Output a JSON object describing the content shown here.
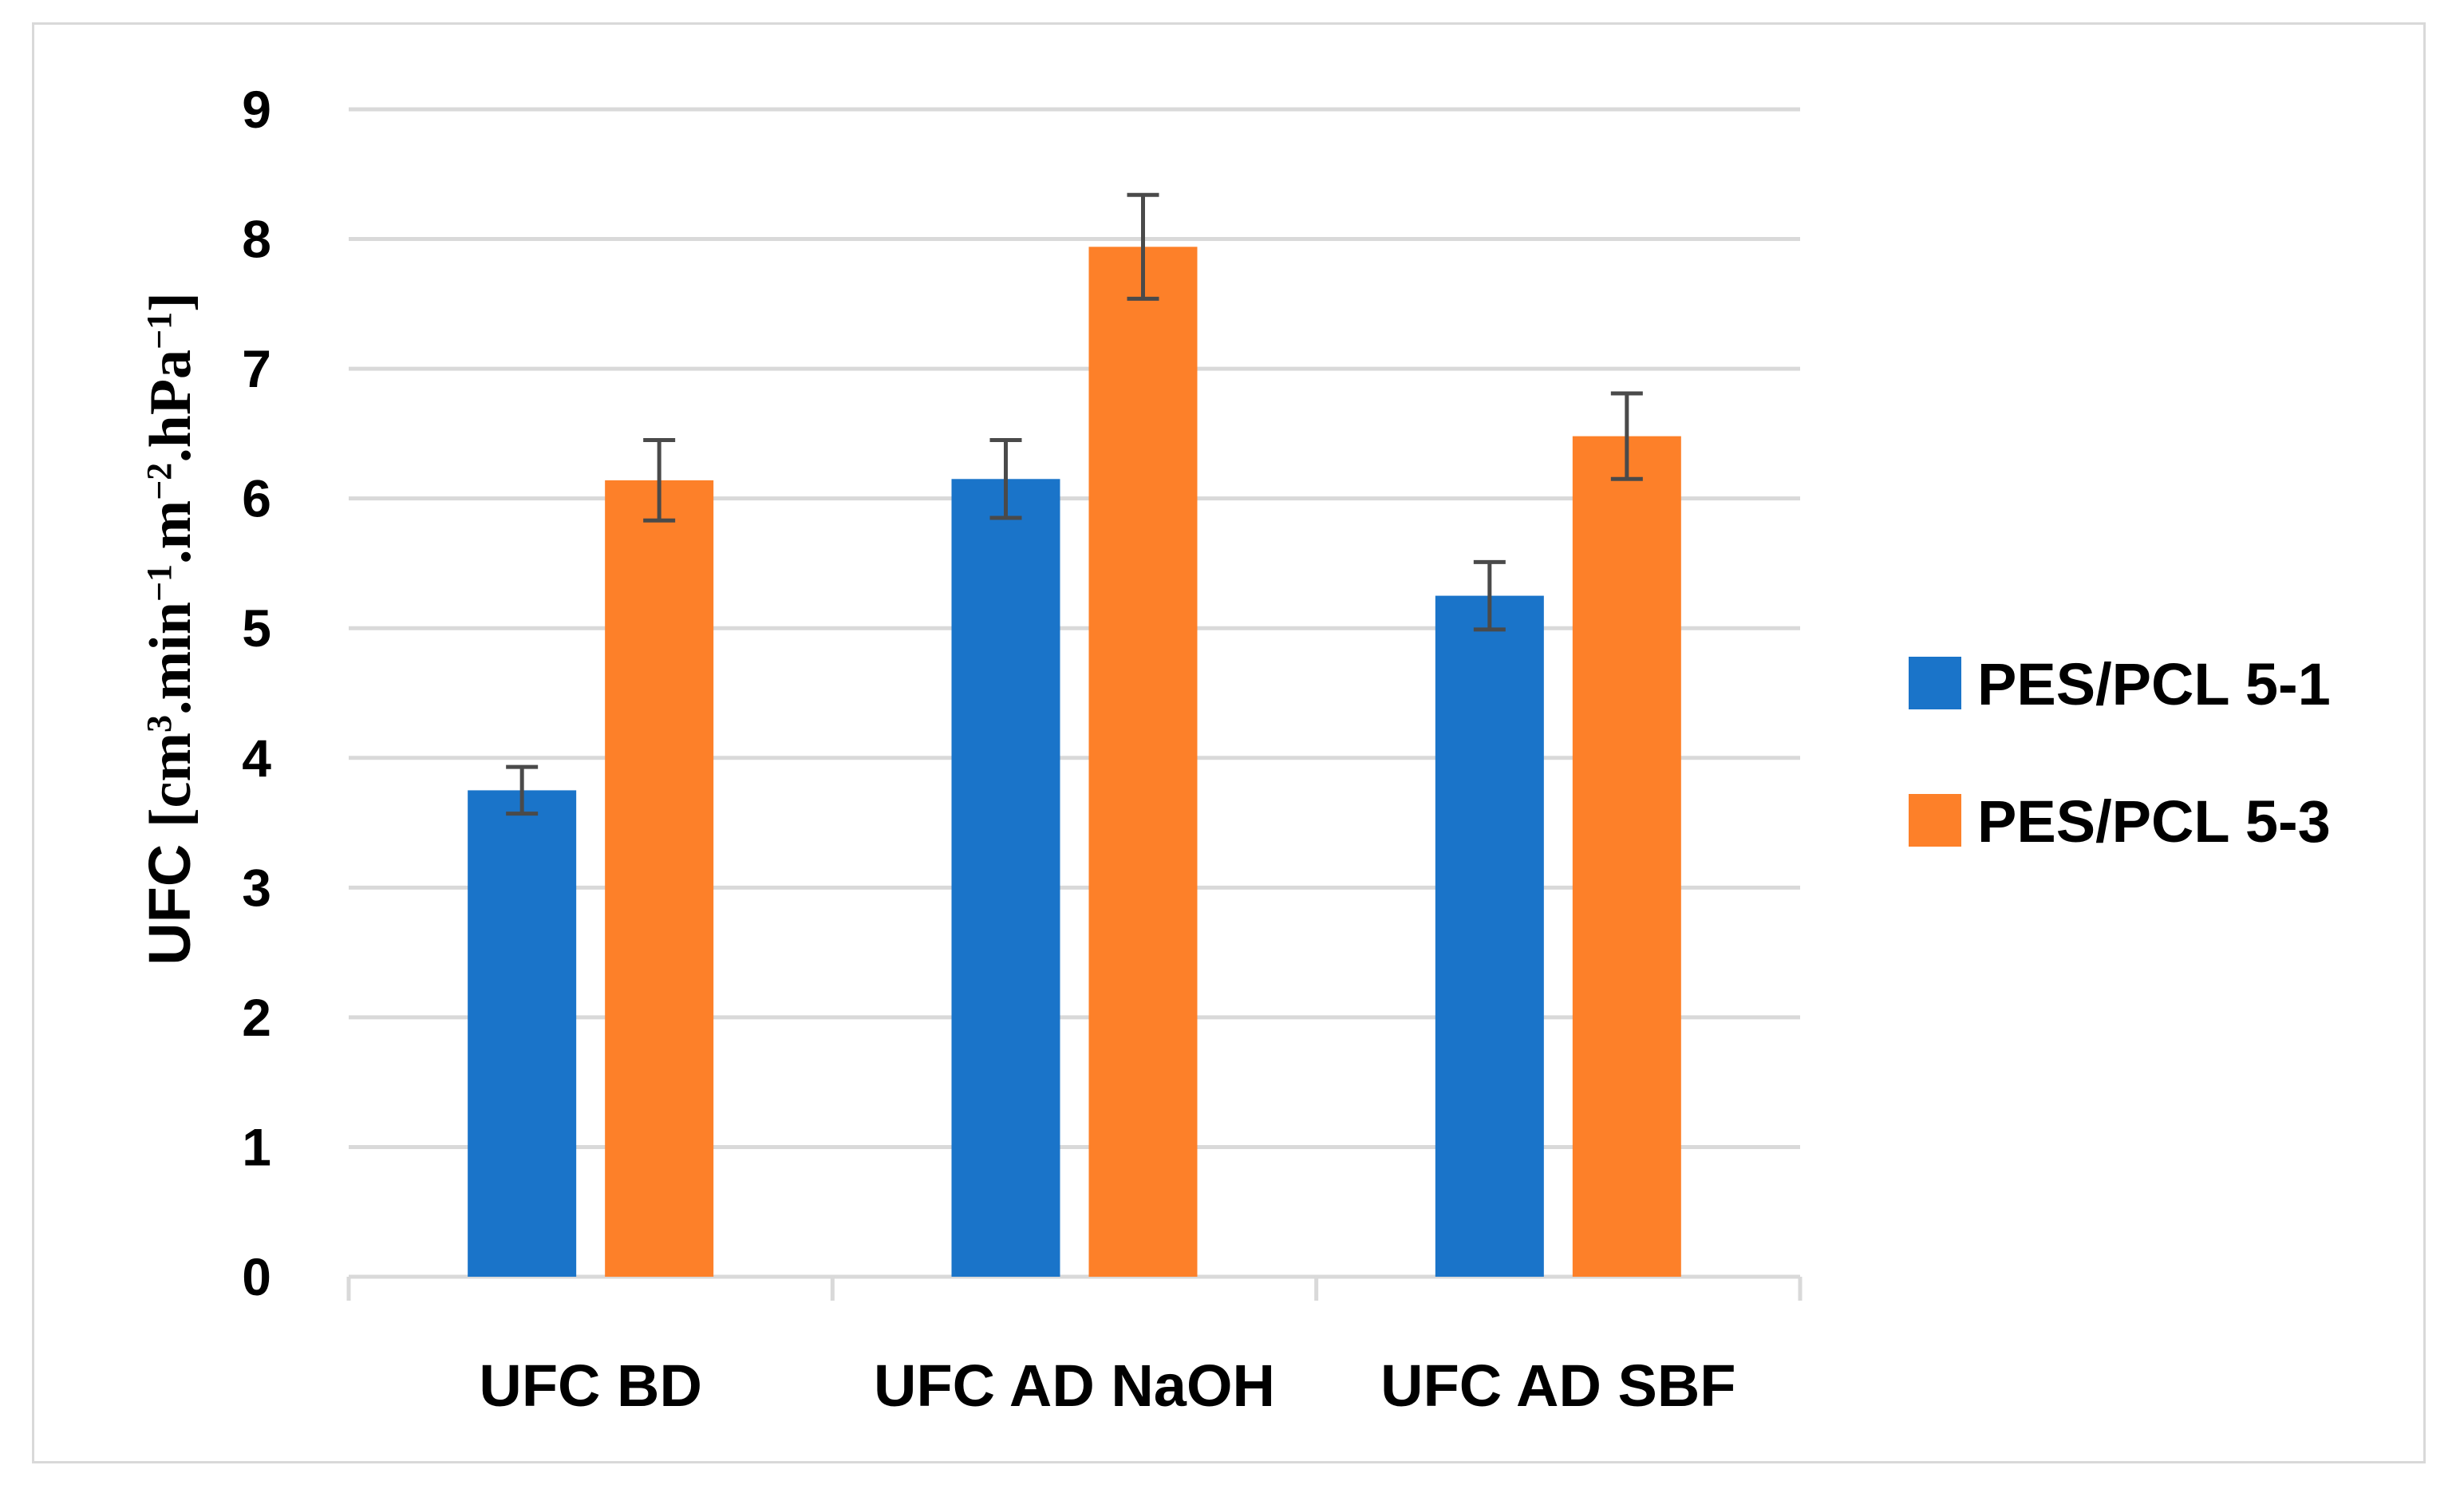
{
  "chart_data": {
    "type": "bar",
    "title": "",
    "xlabel": "",
    "ylabel": {
      "prefix": "UFC ",
      "bracket_open": "[",
      "cm": "cm",
      "cm_exp": "3",
      "min": ".min",
      "min_exp": "−1",
      "m": ".m",
      "m_exp": "−2",
      "hpa": ".hPa",
      "hpa_exp": "−1",
      "bracket_close": "]"
    },
    "ylim": [
      0,
      9
    ],
    "yticks": [
      "0",
      "1",
      "2",
      "3",
      "4",
      "5",
      "6",
      "7",
      "8",
      "9"
    ],
    "grid": true,
    "legend_position": "right",
    "categories": [
      "UFC BD",
      "UFC AD NaOH",
      "UFC AD SBF"
    ],
    "series": [
      {
        "name": "PES/PCL 5-1",
        "color": "#1a74c9",
        "values": [
          3.75,
          6.15,
          5.25
        ],
        "errors": [
          0.18,
          0.3,
          0.26
        ]
      },
      {
        "name": "PES/PCL 5-3",
        "color": "#fd8029",
        "values": [
          6.14,
          7.94,
          6.48
        ],
        "errors": [
          0.31,
          0.4,
          0.33
        ]
      }
    ]
  }
}
